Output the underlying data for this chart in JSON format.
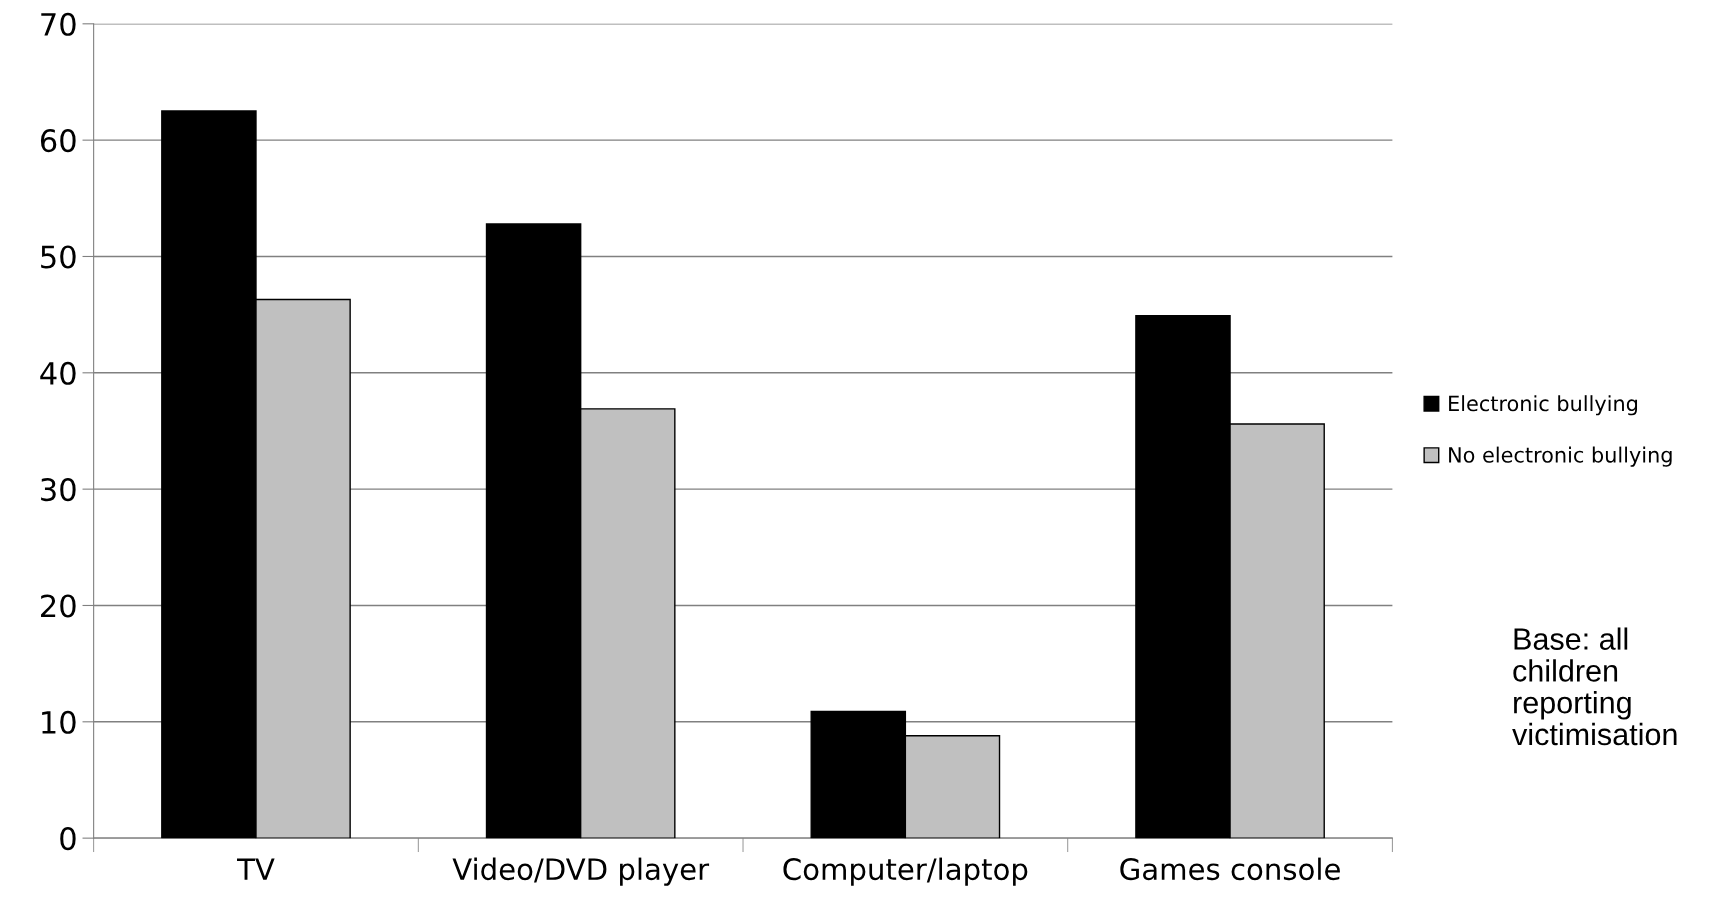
{
  "chart_data": {
    "type": "bar",
    "categories": [
      "TV",
      "Video/DVD player",
      "Computer/laptop",
      "Games console"
    ],
    "series": [
      {
        "name": "Electronic bullying",
        "color": "#000000",
        "values": [
          62.5,
          52.8,
          10.9,
          44.9
        ]
      },
      {
        "name": "No electronic bullying",
        "color": "#c0c0c0",
        "values": [
          46.3,
          36.9,
          8.8,
          35.6
        ]
      }
    ],
    "ylim": [
      0,
      70
    ],
    "yticks": [
      0,
      10,
      20,
      30,
      40,
      50,
      60,
      70
    ],
    "grid": "y",
    "legend": "right",
    "annotations": [
      "Base: all\nchildren\nreporting\nvictimisation"
    ]
  }
}
